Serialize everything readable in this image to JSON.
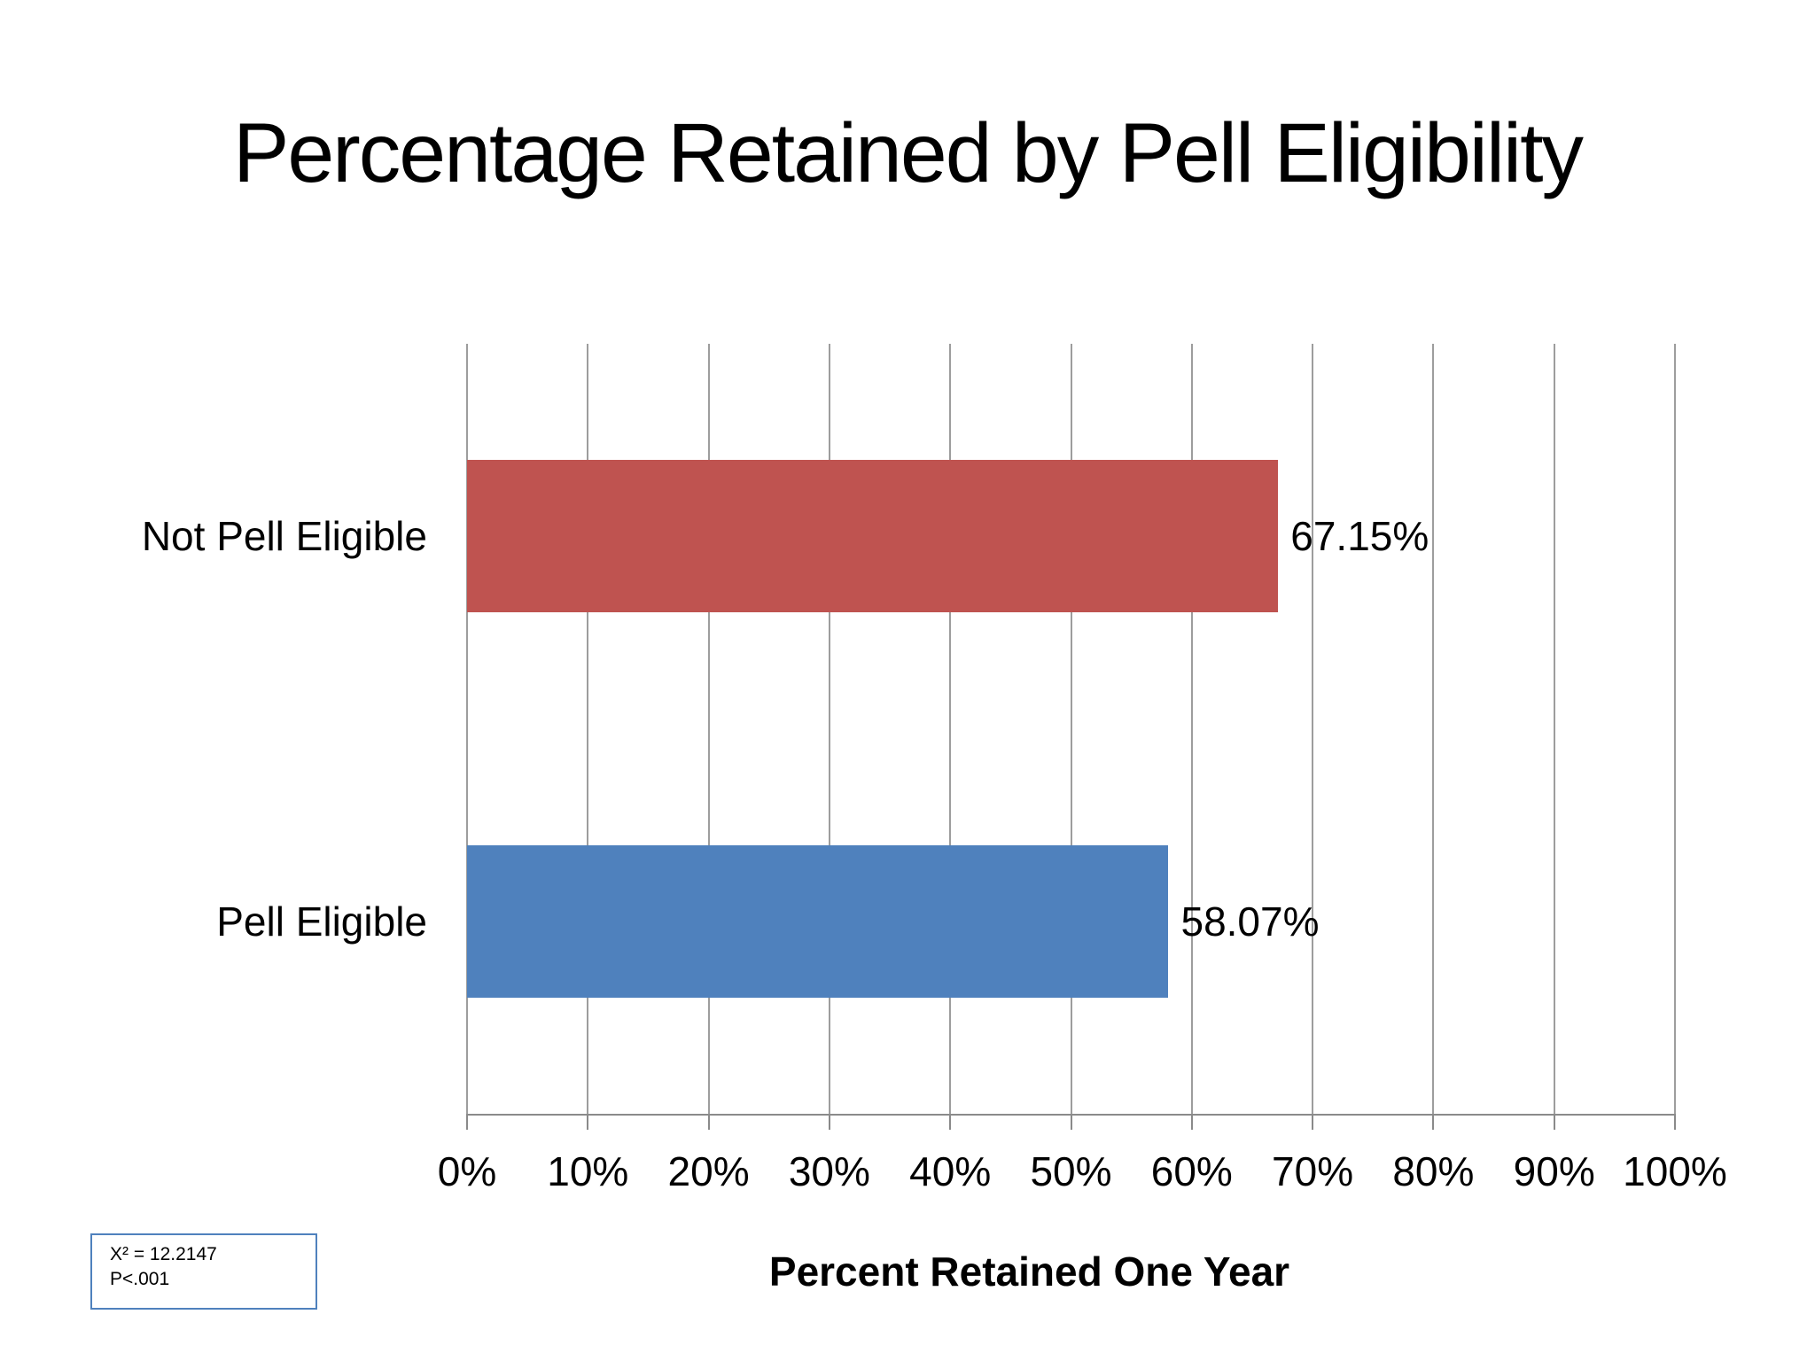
{
  "title": "Percentage Retained by Pell Eligibility",
  "chart_data": {
    "type": "bar",
    "orientation": "horizontal",
    "title": "Percentage Retained by Pell Eligibility",
    "categories": [
      "Not Pell Eligible",
      "Pell Eligible"
    ],
    "values": [
      67.15,
      58.07
    ],
    "value_labels": [
      "67.15%",
      "58.07%"
    ],
    "series_colors": [
      "#BF5350",
      "#4F81BD"
    ],
    "xlabel": "Percent Retained One Year",
    "ylabel": "",
    "xlim": [
      0,
      100
    ],
    "x_tick_labels": [
      "0%",
      "10%",
      "20%",
      "30%",
      "40%",
      "50%",
      "60%",
      "70%",
      "80%",
      "90%",
      "100%"
    ],
    "grid": true,
    "legend": false,
    "annotation": {
      "lines": [
        "X² = 12.2147",
        "P<.001"
      ]
    }
  },
  "colors": {
    "gridline": "#9d9d9d",
    "axis_line": "#8a8a8a",
    "annotation_border": "#4F81BD",
    "background": "#ffffff",
    "text": "#000000"
  }
}
